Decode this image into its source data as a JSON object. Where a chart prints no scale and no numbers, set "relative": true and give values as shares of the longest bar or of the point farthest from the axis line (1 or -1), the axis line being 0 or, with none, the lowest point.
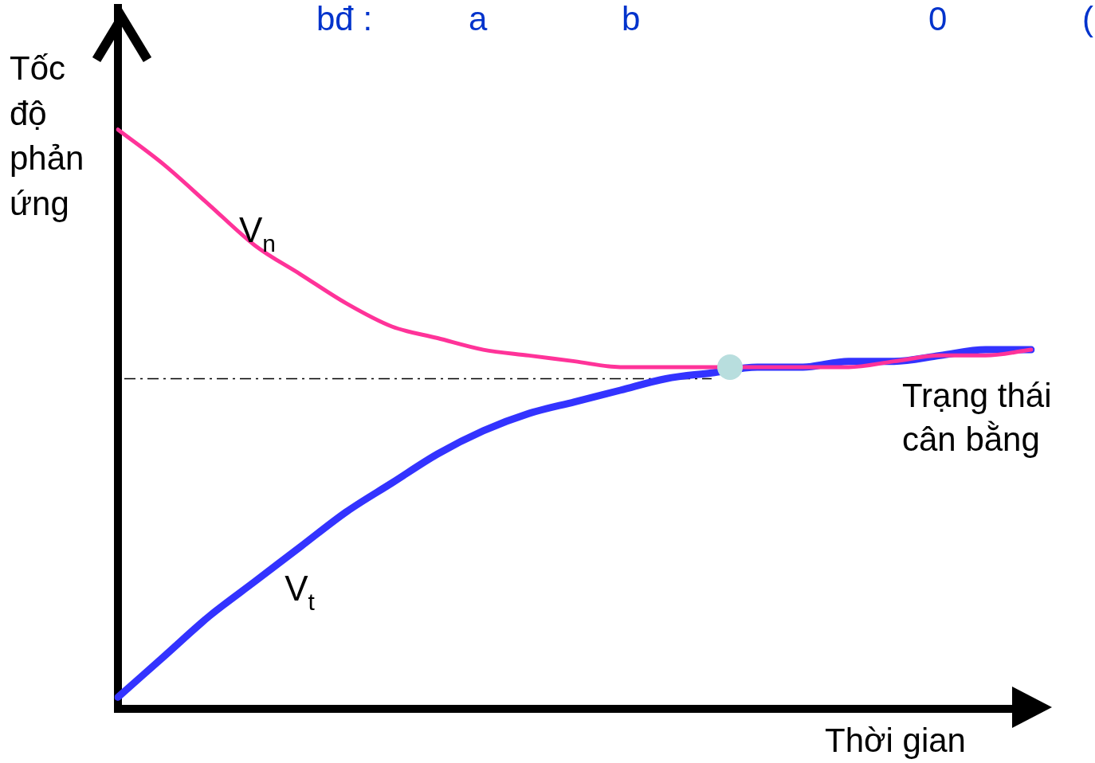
{
  "chart_data": {
    "type": "line",
    "relative": true,
    "xlabel": "Thời gian",
    "ylabel": "Tốc độ phản ứng",
    "categories": [
      null,
      null,
      null,
      null,
      null,
      null,
      null,
      null,
      null,
      null,
      null,
      null,
      null,
      null,
      null,
      null,
      null,
      null,
      null,
      null,
      null
    ],
    "series": [
      {
        "name": "V$_{n}$",
        "color": "#ff3399",
        "values": [
          1,
          0.94,
          0.87,
          0.8,
          0.75,
          0.7,
          0.66,
          0.64,
          0.62,
          0.61,
          0.6,
          0.59,
          0.59,
          0.59,
          0.59,
          0.59,
          0.59,
          0.6,
          0.61,
          0.61,
          0.62
        ]
      },
      {
        "name": "V$_{t}$",
        "color": "#3333ff",
        "values": [
          0.02,
          0.09,
          0.16,
          0.22,
          0.28,
          0.34,
          0.39,
          0.44,
          0.48,
          0.51,
          0.53,
          0.55,
          0.57,
          0.58,
          0.59,
          0.59,
          0.6,
          0.6,
          0.61,
          0.62,
          0.62
        ]
      }
    ],
    "ref_lines": [
      {
        "axis": "y",
        "value": 0.57,
        "color": "#000000",
        "line_style": "dashed"
      }
    ],
    "annotations": [
      "bđ :",
      "a",
      "b",
      "0",
      "(",
      "Trạng thái cân bằng"
    ],
    "grid": false,
    "legend": false,
    "marker": "none",
    "line_style": "solid"
  }
}
